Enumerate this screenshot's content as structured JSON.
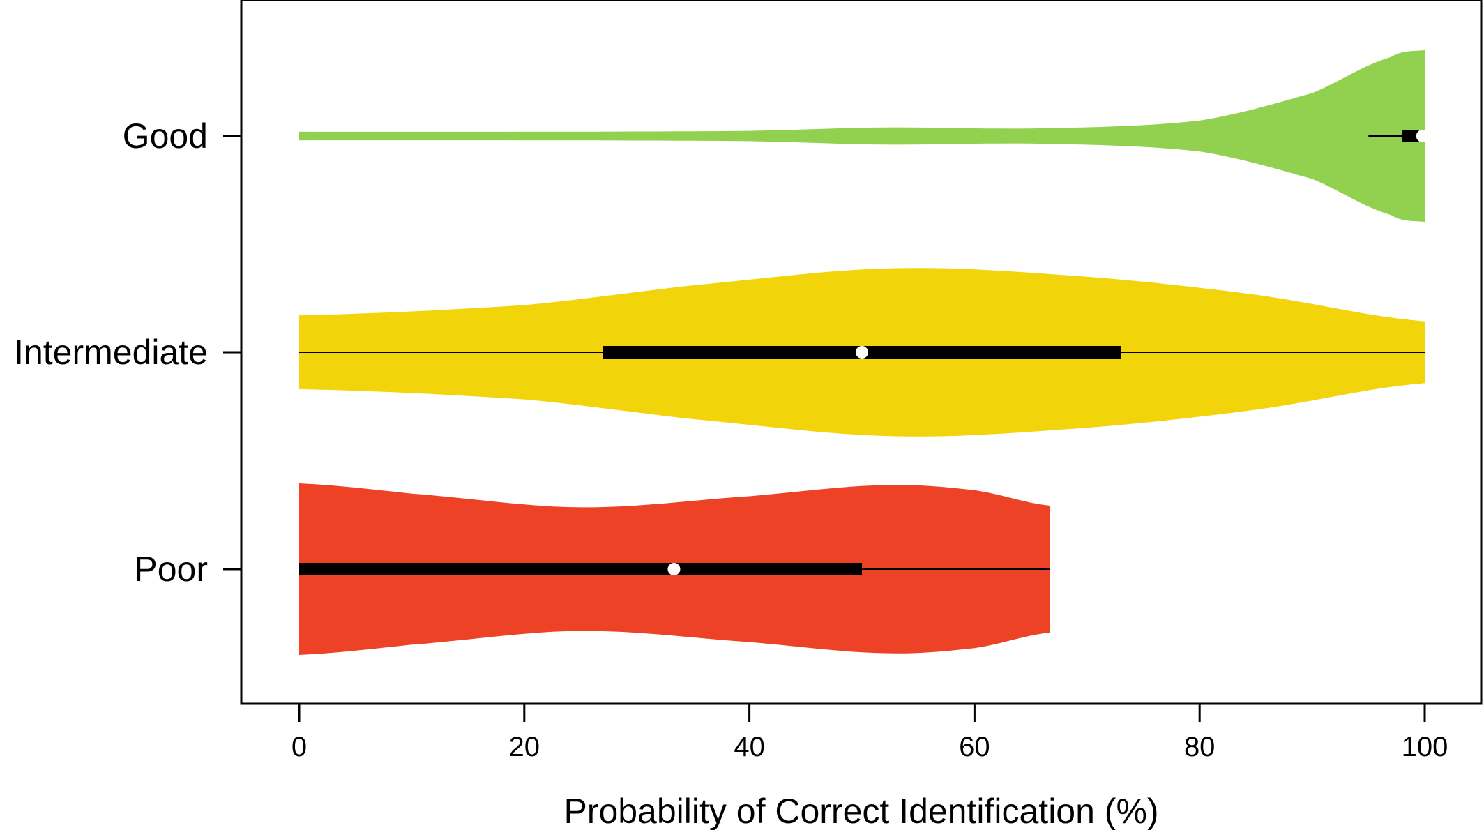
{
  "chart_data": {
    "type": "violin",
    "orientation": "horizontal",
    "title": "",
    "xlabel": "Probability of Correct Identification (%)",
    "ylabel": "",
    "xlim": [
      0,
      100
    ],
    "xticks": [
      0,
      20,
      40,
      60,
      80,
      100
    ],
    "grid": false,
    "legend": "none",
    "categories": [
      "Good",
      "Intermediate",
      "Poor"
    ],
    "series": [
      {
        "name": "Good",
        "color": "#92d050",
        "range": [
          0,
          100
        ],
        "median": 99.8,
        "iqr": [
          98,
          100
        ],
        "whiskers": [
          95,
          100
        ],
        "density": [
          [
            0,
            0.05
          ],
          [
            20,
            0.05
          ],
          [
            40,
            0.06
          ],
          [
            52,
            0.1
          ],
          [
            66,
            0.09
          ],
          [
            80,
            0.18
          ],
          [
            90,
            0.5
          ],
          [
            97,
            0.92
          ],
          [
            100,
            1.0
          ]
        ]
      },
      {
        "name": "Intermediate",
        "color": "#f2d40a",
        "range": [
          0,
          100
        ],
        "median": 50,
        "iqr": [
          27,
          73
        ],
        "whiskers": [
          0,
          100
        ],
        "density": [
          [
            0,
            0.43
          ],
          [
            20,
            0.55
          ],
          [
            35,
            0.78
          ],
          [
            53,
            0.98
          ],
          [
            70,
            0.88
          ],
          [
            85,
            0.67
          ],
          [
            100,
            0.36
          ]
        ]
      },
      {
        "name": "Poor",
        "color": "#ed4226",
        "range": [
          0,
          66.7
        ],
        "median": 33.3,
        "iqr": [
          0,
          50
        ],
        "whiskers": [
          0,
          66.7
        ],
        "density": [
          [
            0,
            1.0
          ],
          [
            10,
            0.88
          ],
          [
            25,
            0.72
          ],
          [
            40,
            0.85
          ],
          [
            52,
            0.98
          ],
          [
            60,
            0.92
          ],
          [
            66.7,
            0.74
          ]
        ]
      }
    ]
  }
}
